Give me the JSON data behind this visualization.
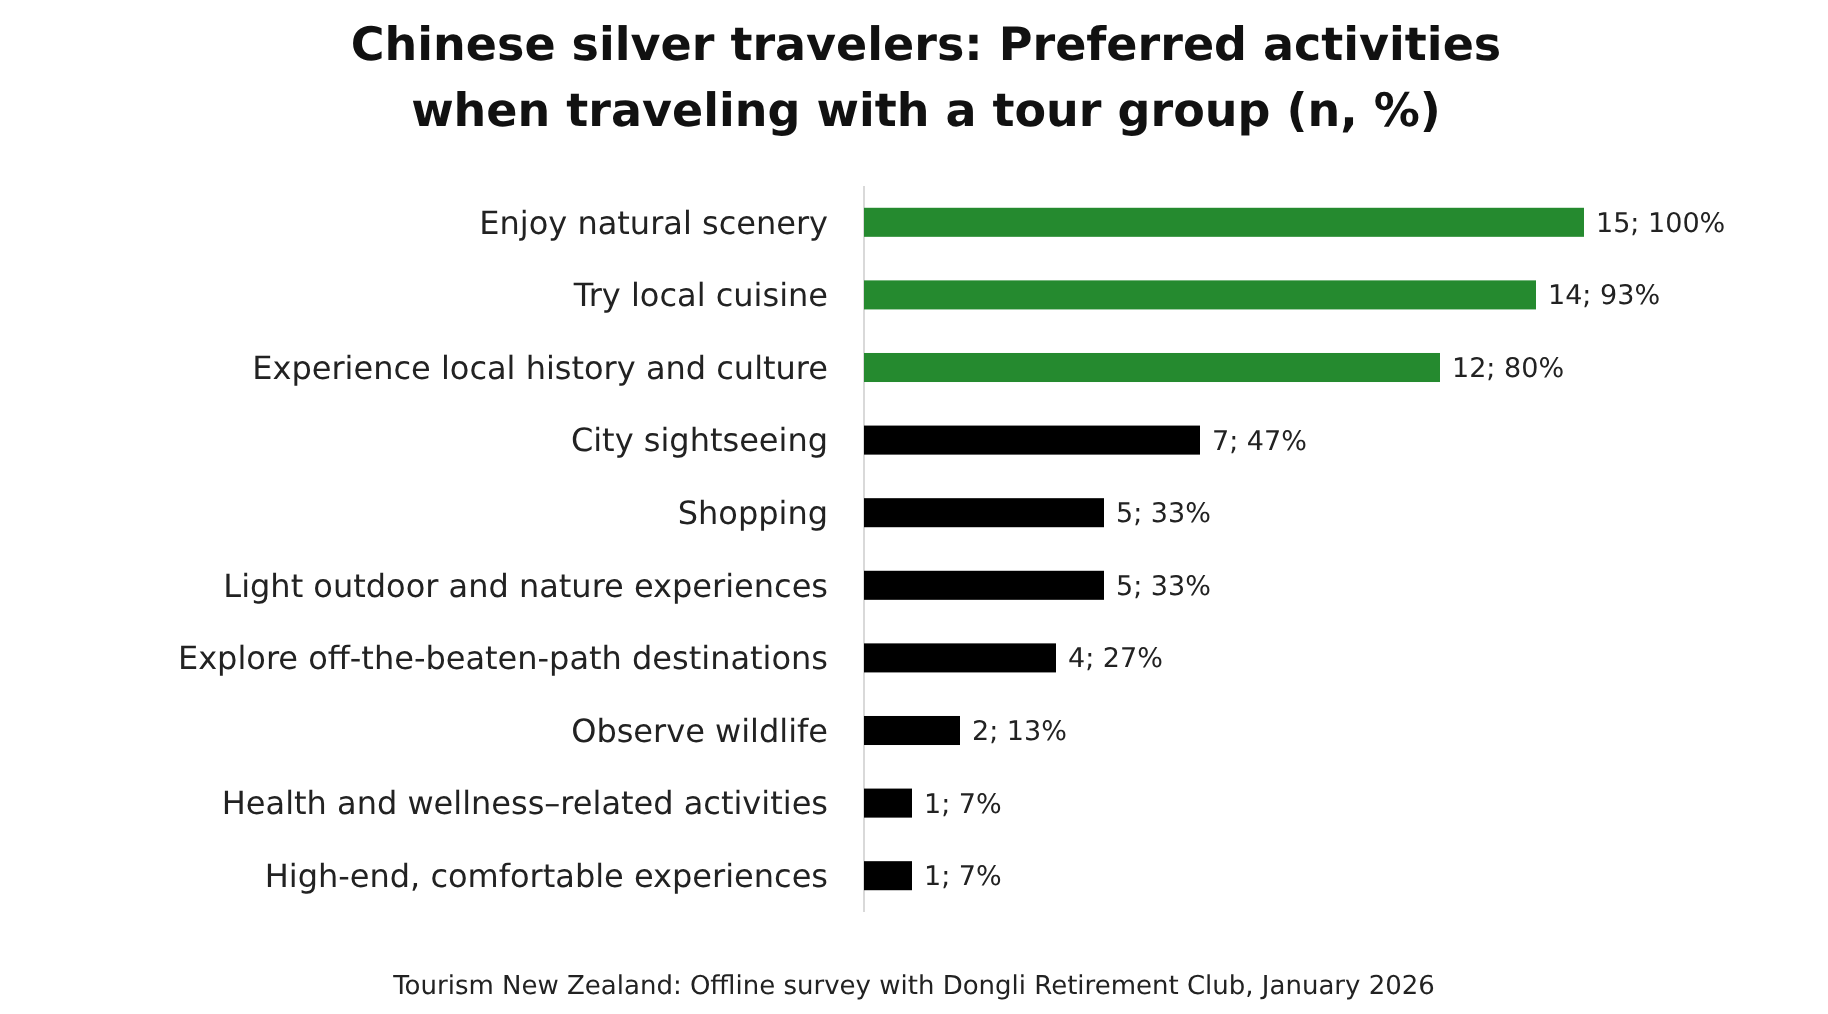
{
  "chart_data": {
    "type": "bar",
    "orientation": "horizontal",
    "title": "Chinese silver travelers: Preferred activities\nwhen traveling with a tour group (n, %)",
    "categories": [
      "Enjoy natural scenery",
      "Try local cuisine",
      "Experience local history and culture",
      "City sightseeing",
      "Shopping",
      "Light outdoor and nature experiences",
      "Explore off-the-beaten-path destinations",
      "Observe wildlife",
      "Health and wellness–related activities",
      "High-end, comfortable experiences"
    ],
    "values": [
      15,
      14,
      12,
      7,
      5,
      5,
      4,
      2,
      1,
      1
    ],
    "colors": [
      "#258a2f",
      "#258a2f",
      "#258a2f",
      "#000000",
      "#000000",
      "#000000",
      "#000000",
      "#000000",
      "#000000",
      "#000000"
    ],
    "value_labels": [
      "15; 100%",
      "14; 93%",
      "12; 80%",
      "7; 47%",
      "5; 33%",
      "5; 33%",
      "4; 27%",
      "2; 13%",
      "1; 7%",
      "1; 7%"
    ],
    "annotations": [
      "Tourism New Zealand: Offline survey with Dongli Retirement Club, January 2026"
    ]
  }
}
